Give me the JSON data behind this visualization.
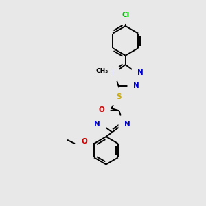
{
  "background_color": "#e8e8e8",
  "atom_colors": {
    "C": "#000000",
    "N": "#0000cc",
    "O": "#cc0000",
    "S": "#ccaa00",
    "Cl": "#00bb00"
  },
  "bond_color": "#000000",
  "bond_width": 1.4,
  "fig_w": 3.0,
  "fig_h": 3.0,
  "dpi": 100
}
